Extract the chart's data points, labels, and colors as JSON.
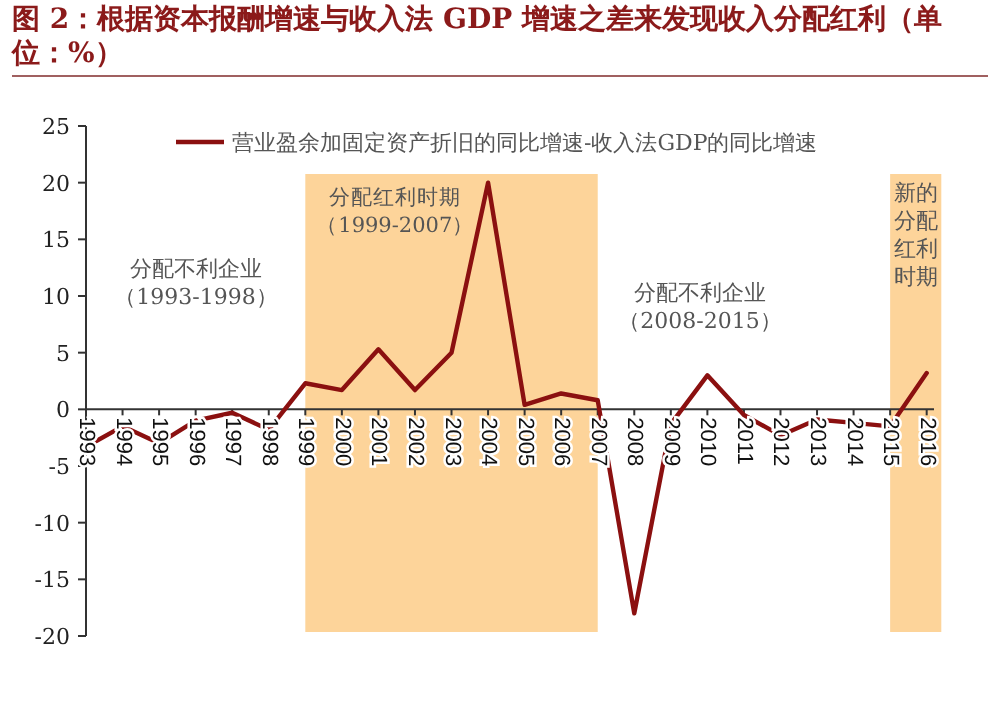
{
  "chart_data": {
    "type": "line",
    "title": "图 2：根据资本报酬增速与收入法 GDP 增速之差来发现收入分配红利（单位：%）",
    "x": [
      1993,
      1994,
      1995,
      1996,
      1997,
      1998,
      1999,
      2000,
      2001,
      2002,
      2003,
      2004,
      2005,
      2006,
      2007,
      2008,
      2009,
      2010,
      2011,
      2012,
      2013,
      2014,
      2015,
      2016
    ],
    "series": [
      {
        "name": "营业盈余加固定资产折旧的同比增速-收入法GDP的同比增速",
        "color": "#8b1010",
        "values": [
          -3.3,
          -1.5,
          -3,
          -1,
          -0.3,
          -1.8,
          2.3,
          1.7,
          5.3,
          1.7,
          5,
          20,
          0.4,
          1.4,
          0.8,
          -18,
          -1.3,
          3,
          -0.5,
          -2.3,
          -0.9,
          -1.2,
          -1.5,
          3.2
        ]
      }
    ],
    "xlim": [
      1993,
      2016.2
    ],
    "ylim": [
      -20,
      25
    ],
    "xticks": [
      1993,
      1994,
      1995,
      1996,
      1997,
      1998,
      1999,
      2000,
      2001,
      2002,
      2003,
      2004,
      2005,
      2006,
      2007,
      2008,
      2009,
      2010,
      2011,
      2012,
      2013,
      2014,
      2015,
      2016
    ],
    "yticks": [
      -20,
      -15,
      -10,
      -5,
      0,
      5,
      10,
      15,
      20,
      25
    ],
    "bands": [
      {
        "axis": "x",
        "from": 1999,
        "to": 2007,
        "label": "分配红利时期（1999-2007）",
        "color": "#fdd49a"
      },
      {
        "axis": "x",
        "from": 2015,
        "to": 2016.4,
        "label": "新的分配红利时期",
        "color": "#fdd49a"
      }
    ],
    "annotations": [
      "分配不利企业（1993-1998）",
      "分配不利企业（2008-2015）"
    ],
    "legend": "top",
    "grid": false,
    "marker": "none",
    "line_style": "solid"
  }
}
